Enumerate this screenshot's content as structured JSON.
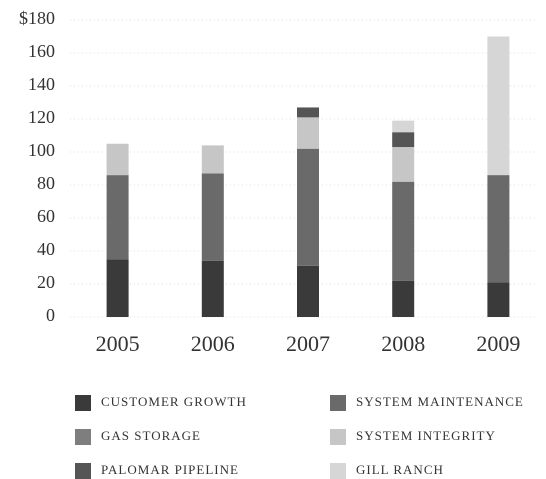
{
  "chart_data": {
    "type": "stacked_bar",
    "categories": [
      "2005",
      "2006",
      "2007",
      "2008",
      "2009"
    ],
    "series": [
      {
        "name": "CUSTOMER GROWTH",
        "color": "#3a3a3a",
        "values": [
          35,
          34,
          31,
          22,
          21
        ]
      },
      {
        "name": "SYSTEM MAINTENANCE",
        "color": "#6a6a6a",
        "values": [
          51,
          53,
          71,
          60,
          65
        ]
      },
      {
        "name": "GAS STORAGE",
        "color": "#7e7e7e",
        "values": [
          0,
          0,
          0,
          0,
          0
        ]
      },
      {
        "name": "SYSTEM INTEGRITY",
        "color": "#c6c6c6",
        "values": [
          19,
          17,
          19,
          21,
          0
        ]
      },
      {
        "name": "PALOMAR PIPELINE",
        "color": "#555555",
        "values": [
          0,
          0,
          6,
          9,
          0
        ]
      },
      {
        "name": "GILL RANCH",
        "color": "#d6d6d6",
        "values": [
          0,
          0,
          0,
          7,
          84
        ]
      }
    ],
    "ylim": [
      0,
      180
    ],
    "yticks": [
      0,
      20,
      40,
      60,
      80,
      100,
      120,
      140,
      160,
      {
        "value": 180,
        "label": "$180"
      }
    ],
    "grid": true
  }
}
